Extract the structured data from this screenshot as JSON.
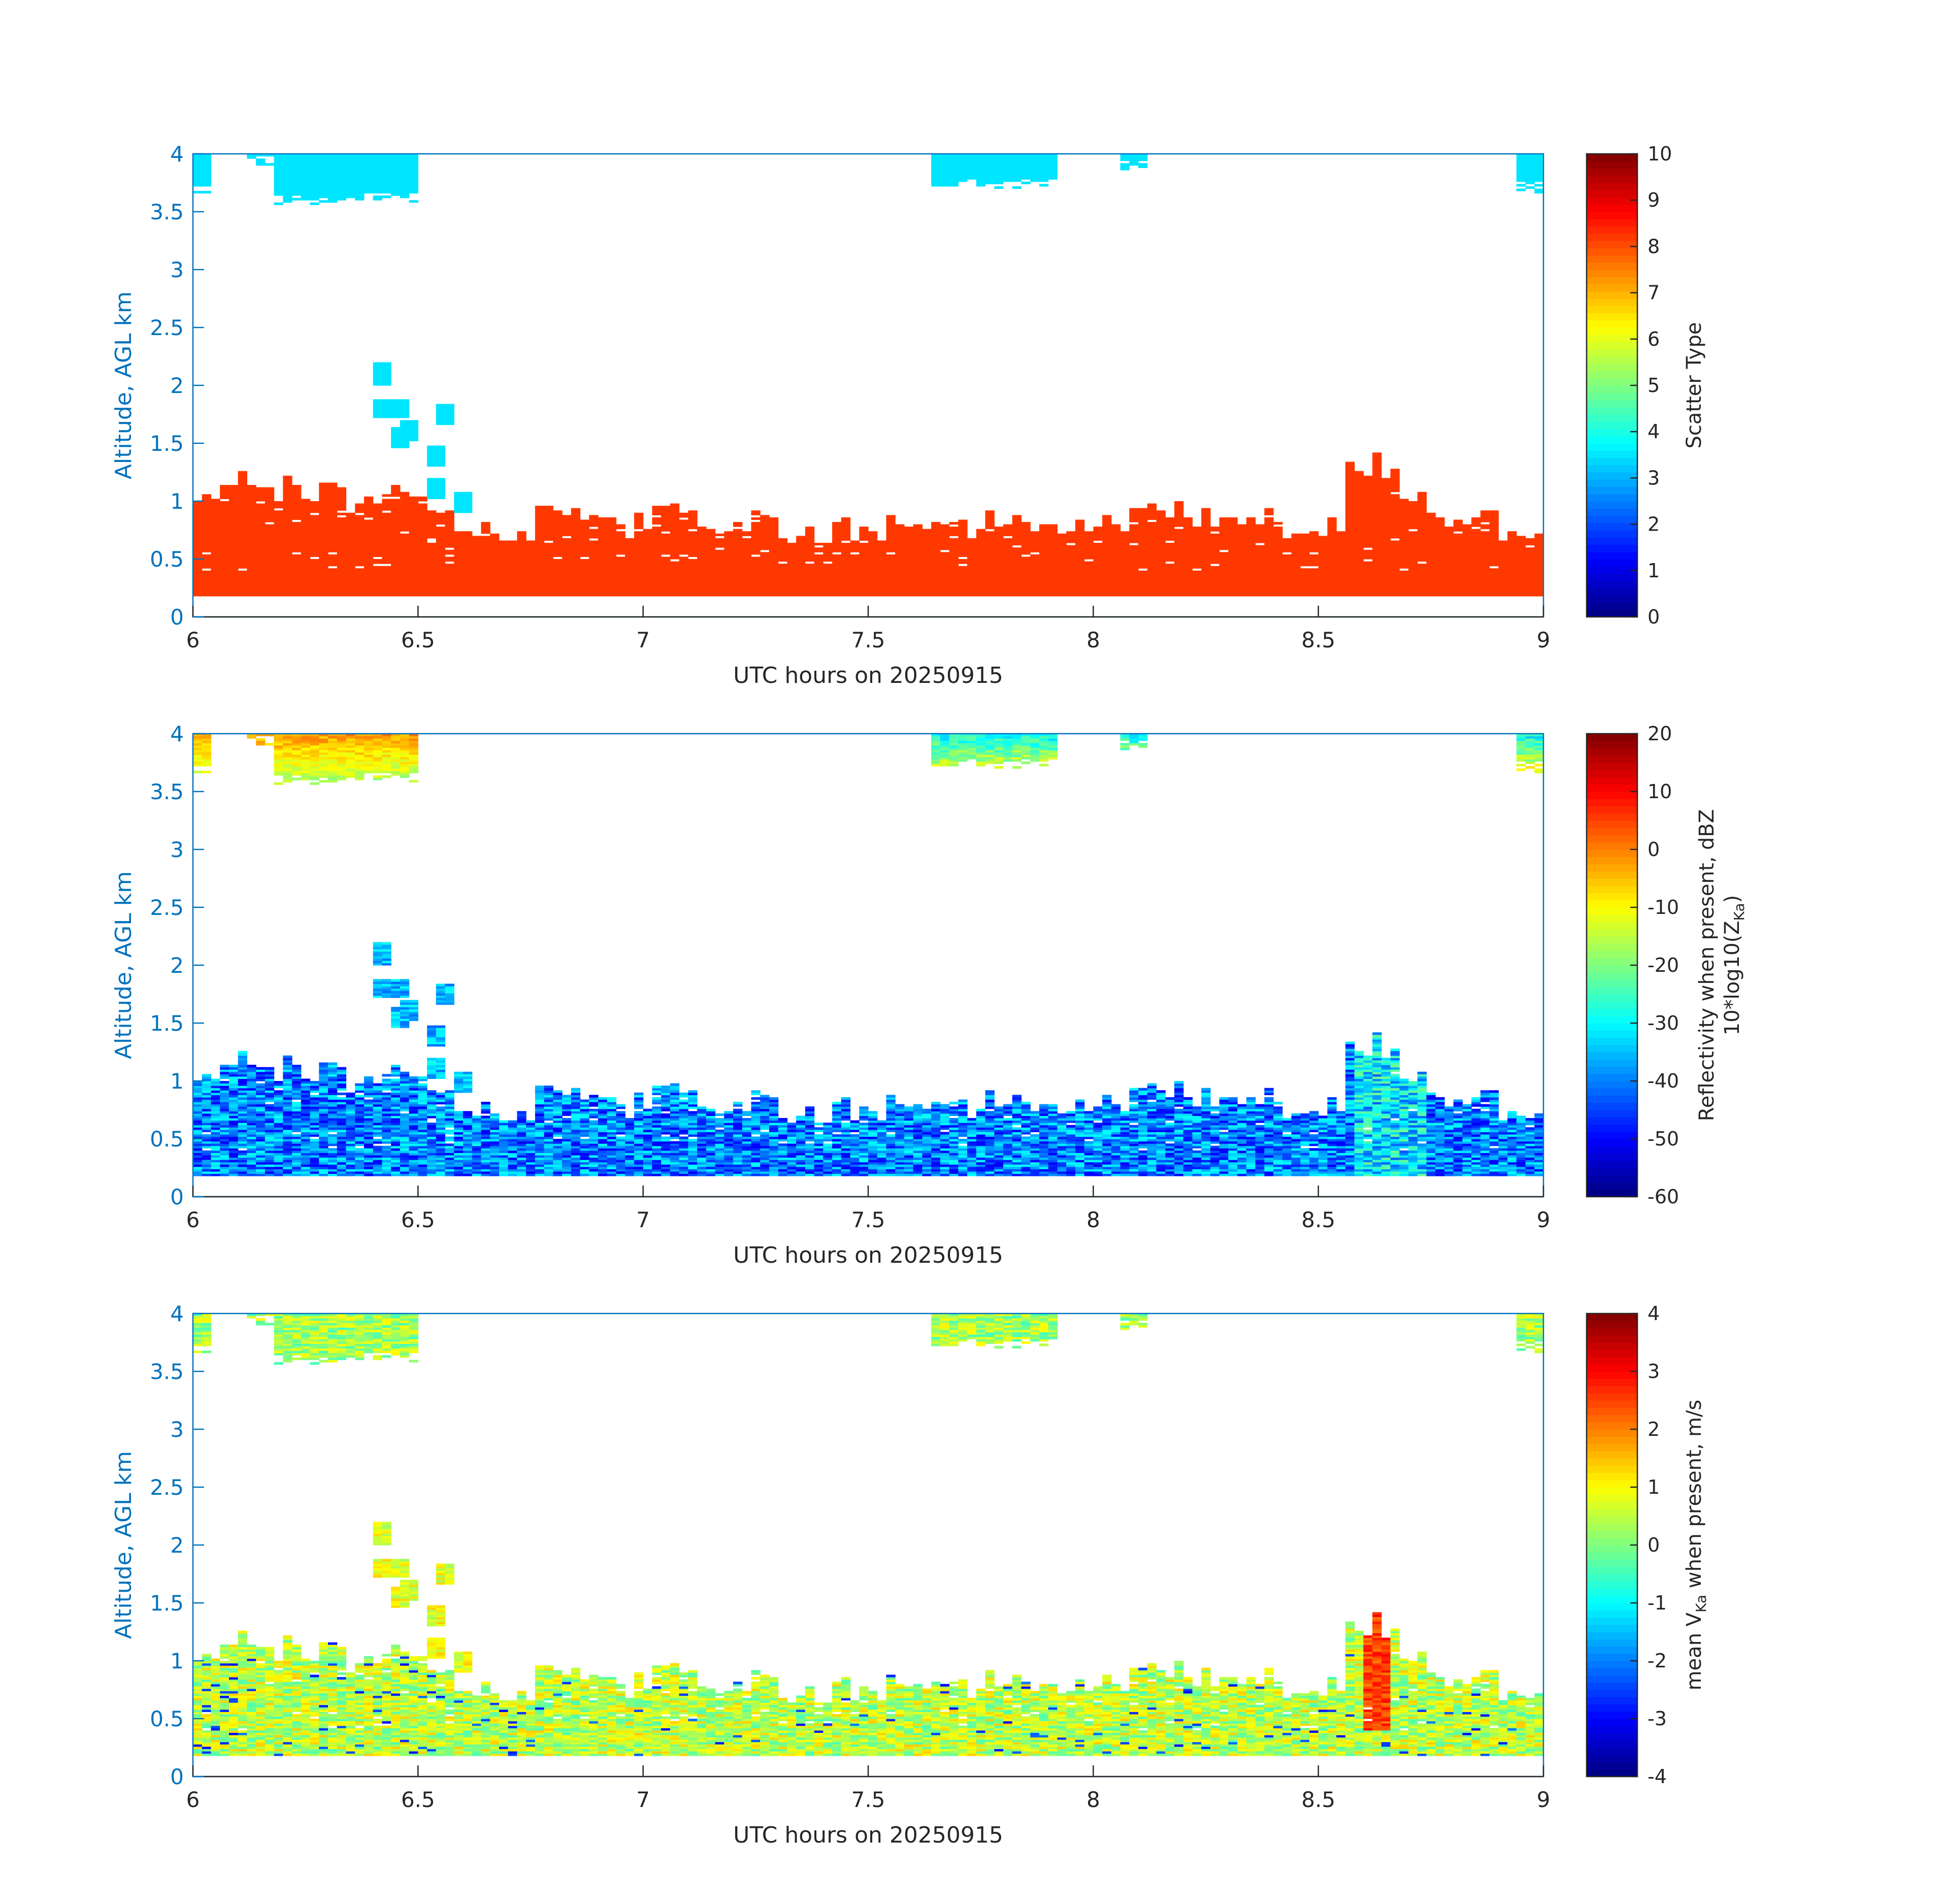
{
  "chart_data": [
    {
      "type": "heatmap",
      "xlabel": "UTC hours on 20250915",
      "ylabel": "Altitude, AGL km",
      "xlim": [
        6,
        9
      ],
      "ylim": [
        0,
        4
      ],
      "xticks": [
        "6",
        "6.5",
        "7",
        "7.5",
        "8",
        "8.5",
        "9"
      ],
      "yticks": [
        "0",
        "0.5",
        "1",
        "1.5",
        "2",
        "2.5",
        "3",
        "3.5",
        "4"
      ],
      "colorbar": {
        "label_lines": [
          "Scatter Type"
        ],
        "range": [
          0,
          10
        ],
        "ticks": [
          "0",
          "1",
          "2",
          "3",
          "4",
          "5",
          "6",
          "7",
          "8",
          "9",
          "10"
        ],
        "colormap": "jet"
      },
      "field": "scatter_type",
      "dominant_values": {
        "boundary_layer": 8.2,
        "cloud_top": 3.5
      }
    },
    {
      "type": "heatmap",
      "xlabel": "UTC hours on 20250915",
      "ylabel": "Altitude, AGL km",
      "xlim": [
        6,
        9
      ],
      "ylim": [
        0,
        4
      ],
      "xticks": [
        "6",
        "6.5",
        "7",
        "7.5",
        "8",
        "8.5",
        "9"
      ],
      "yticks": [
        "0",
        "0.5",
        "1",
        "1.5",
        "2",
        "2.5",
        "3",
        "3.5",
        "4"
      ],
      "colorbar": {
        "label_lines": [
          "Reflectivity when present, dBZ",
          "10*log10(Z",
          "Ka",
          ")"
        ],
        "range": [
          -60,
          20
        ],
        "ticks": [
          "-60",
          "-50",
          "-40",
          "-30",
          "-20",
          "-10",
          "0",
          "10",
          "20"
        ],
        "colormap": "jet"
      },
      "field": "reflectivity",
      "typical_values": {
        "boundary_layer": -40,
        "cloud_top": -8
      }
    },
    {
      "type": "heatmap",
      "xlabel": "UTC hours on 20250915",
      "ylabel": "Altitude, AGL km",
      "xlim": [
        6,
        9
      ],
      "ylim": [
        0,
        4
      ],
      "xticks": [
        "6",
        "6.5",
        "7",
        "7.5",
        "8",
        "8.5",
        "9"
      ],
      "yticks": [
        "0",
        "0.5",
        "1",
        "1.5",
        "2",
        "2.5",
        "3",
        "3.5",
        "4"
      ],
      "colorbar": {
        "label_lines": [
          "mean V",
          "Ka",
          " when present, m/s"
        ],
        "range": [
          -4,
          4
        ],
        "ticks": [
          "-4",
          "-3",
          "-2",
          "-1",
          "0",
          "1",
          "2",
          "3",
          "4"
        ],
        "colormap": "jet"
      },
      "field": "doppler_velocity",
      "typical_values": {
        "boundary_layer": 0.5,
        "cloud_top": 0.3
      }
    }
  ],
  "echo_regions": {
    "boundary_layer_base_km": 0.18,
    "boundary_layer_top_km": [
      [
        6.0,
        1.1
      ],
      [
        6.1,
        1.15
      ],
      [
        6.2,
        1.1
      ],
      [
        6.3,
        1.05
      ],
      [
        6.4,
        1.0
      ],
      [
        6.5,
        1.0
      ],
      [
        6.6,
        0.75
      ],
      [
        6.7,
        0.7
      ],
      [
        6.8,
        0.9
      ],
      [
        6.9,
        0.8
      ],
      [
        7.0,
        0.82
      ],
      [
        7.1,
        0.85
      ],
      [
        7.2,
        0.8
      ],
      [
        7.3,
        0.78
      ],
      [
        7.4,
        0.78
      ],
      [
        7.5,
        0.75
      ],
      [
        7.6,
        0.8
      ],
      [
        7.7,
        0.82
      ],
      [
        7.8,
        0.8
      ],
      [
        7.9,
        0.78
      ],
      [
        8.0,
        0.8
      ],
      [
        8.1,
        0.85
      ],
      [
        8.2,
        0.9
      ],
      [
        8.3,
        0.85
      ],
      [
        8.4,
        0.82
      ],
      [
        8.5,
        0.8
      ],
      [
        8.55,
        0.85
      ],
      [
        8.57,
        1.42
      ],
      [
        8.65,
        1.3
      ],
      [
        8.7,
        1.05
      ],
      [
        8.75,
        0.9
      ],
      [
        8.8,
        0.85
      ],
      [
        8.9,
        0.78
      ],
      [
        9.0,
        0.8
      ]
    ],
    "upper_clouds": [
      {
        "x": [
          6.0,
          6.04
        ],
        "bottom_km": 3.65,
        "top_km": 4.0
      },
      {
        "x": [
          6.12,
          6.17
        ],
        "bottom_km": 3.9,
        "top_km": 4.0
      },
      {
        "x": [
          6.18,
          6.5
        ],
        "bottom_km": 3.55,
        "top_km": 4.0
      },
      {
        "x": [
          7.65,
          7.92
        ],
        "bottom_km": 3.68,
        "top_km": 4.0
      },
      {
        "x": [
          8.07,
          8.12
        ],
        "bottom_km": 3.85,
        "top_km": 4.0
      },
      {
        "x": [
          8.95,
          9.0
        ],
        "bottom_km": 3.65,
        "top_km": 4.0
      }
    ],
    "isolated_patches": [
      {
        "x": 6.42,
        "y": 2.1
      },
      {
        "x": 6.42,
        "y": 1.8
      },
      {
        "x": 6.45,
        "y": 1.8
      },
      {
        "x": 6.46,
        "y": 1.55
      },
      {
        "x": 6.48,
        "y": 1.6
      },
      {
        "x": 6.56,
        "y": 1.75
      },
      {
        "x": 6.53,
        "y": 1.4
      },
      {
        "x": 6.54,
        "y": 1.1
      },
      {
        "x": 6.6,
        "y": 1.0
      }
    ]
  }
}
